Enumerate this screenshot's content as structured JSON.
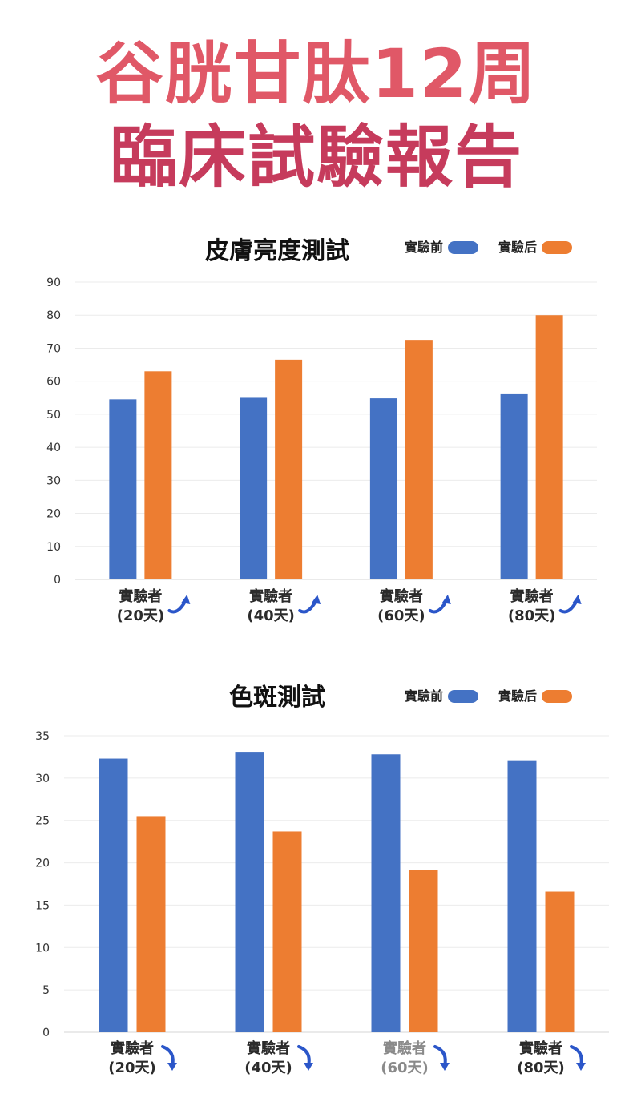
{
  "header": {
    "title_line1": "谷胱甘肽12周",
    "title_line2": "臨床試驗報告"
  },
  "chart_data": [
    {
      "type": "bar",
      "title": "皮膚亮度測試",
      "categories": [
        "實驗者\n(20天)",
        "實驗者\n(40天)",
        "實驗者\n(60天)",
        "實驗者\n(80天)"
      ],
      "series": [
        {
          "name": "實驗前",
          "color": "#4472c4",
          "values": [
            54.5,
            55.2,
            54.8,
            56.3
          ]
        },
        {
          "name": "實驗后",
          "color": "#ed7d31",
          "values": [
            63,
            66.5,
            72.5,
            80
          ]
        }
      ],
      "ylim": [
        0,
        90
      ],
      "yticks": [
        0,
        10,
        20,
        30,
        40,
        50,
        60,
        70,
        80,
        90
      ],
      "grid": true,
      "legend": "top-right",
      "arrow_icons": "curved-up-arrow-icon"
    },
    {
      "type": "bar",
      "title": "色斑測試",
      "categories": [
        "實驗者\n(20天)",
        "實驗者\n(40天)",
        "實驗者\n(60天)",
        "實驗者\n(80天)"
      ],
      "series": [
        {
          "name": "實驗前",
          "color": "#4472c4",
          "values": [
            32.3,
            33.1,
            32.8,
            32.1
          ]
        },
        {
          "name": "實驗后",
          "color": "#ed7d31",
          "values": [
            25.5,
            23.7,
            19.2,
            16.6
          ]
        }
      ],
      "ylim": [
        0,
        35
      ],
      "yticks": [
        0,
        5,
        10,
        15,
        20,
        25,
        30,
        35
      ],
      "grid": true,
      "legend": "top-right",
      "arrow_icons": "curved-down-arrow-icon"
    }
  ]
}
